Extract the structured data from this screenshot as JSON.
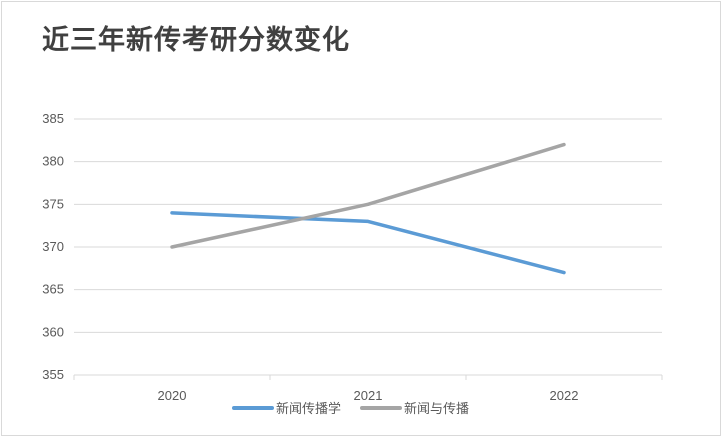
{
  "chart_data": {
    "type": "line",
    "title": "近三年新传考研分数变化",
    "categories": [
      "2020",
      "2021",
      "2022"
    ],
    "series": [
      {
        "name": "新闻传播学",
        "values": [
          374,
          373,
          367
        ],
        "color": "#5b9bd5"
      },
      {
        "name": "新闻与传播",
        "values": [
          370,
          375,
          382
        ],
        "color": "#a5a5a5"
      }
    ],
    "ylim": [
      355,
      385
    ],
    "yticks": [
      355,
      360,
      365,
      370,
      375,
      380,
      385
    ],
    "xlabel": "",
    "ylabel": "",
    "grid": true,
    "legend": "bottom"
  }
}
